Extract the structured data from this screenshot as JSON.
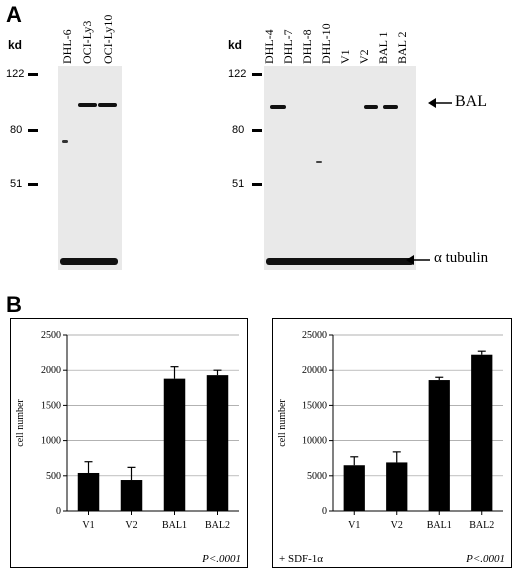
{
  "panel_a": {
    "letter": "A",
    "left_blot": {
      "kd_label": "kd",
      "markers": [
        "122",
        "80",
        "51"
      ],
      "lanes": [
        "DHL-6",
        "OCI-Ly3",
        "OCI-Ly10"
      ]
    },
    "right_blot": {
      "kd_label": "kd",
      "markers": [
        "122",
        "80",
        "51"
      ],
      "lanes": [
        "DHL-4",
        "DHL-7",
        "DHL-8",
        "DHL-10",
        "V1",
        "V2",
        "BAL 1",
        "BAL 2"
      ]
    },
    "band_labels": {
      "bal": "BAL",
      "tubulin": "α tubulin"
    }
  },
  "panel_b": {
    "letter": "B",
    "chart_data": [
      {
        "type": "bar",
        "categories": [
          "V1",
          "V2",
          "BAL1",
          "BAL2"
        ],
        "values": [
          540,
          440,
          1880,
          1930
        ],
        "errors": [
          160,
          180,
          170,
          70
        ],
        "ylabel": "cell number",
        "ylim": [
          0,
          2500
        ],
        "yticks": [
          "0",
          "500",
          "1000",
          "1500",
          "2000",
          "2500"
        ],
        "pvalue": "P<.0001",
        "condition": "",
        "grid": true
      },
      {
        "type": "bar",
        "categories": [
          "V1",
          "V2",
          "BAL1",
          "BAL2"
        ],
        "values": [
          6500,
          6900,
          18600,
          22200
        ],
        "errors": [
          1200,
          1500,
          400,
          500
        ],
        "ylabel": "cell number",
        "ylim": [
          0,
          25000
        ],
        "yticks": [
          "0",
          "5000",
          "10000",
          "15000",
          "20000",
          "25000"
        ],
        "pvalue": "P<.0001",
        "condition": "+ SDF-1α",
        "grid": true
      }
    ]
  }
}
